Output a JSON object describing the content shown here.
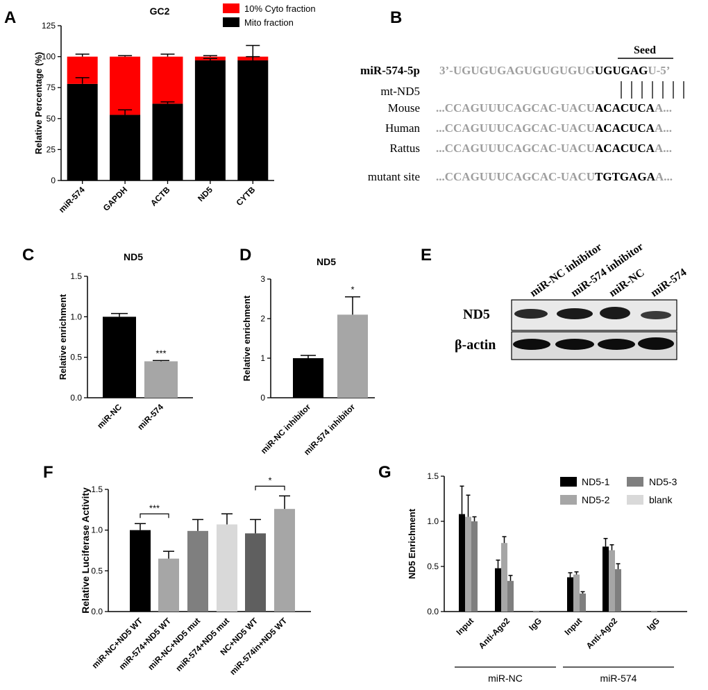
{
  "panel_letters": {
    "A": "A",
    "B": "B",
    "C": "C",
    "D": "D",
    "E": "E",
    "F": "F",
    "G": "G"
  },
  "chart_data": [
    {
      "id": "A",
      "type": "bar",
      "stacked": true,
      "title": "GC2",
      "xlabel": "",
      "ylabel": "Relative Percentage (%)",
      "ylim": [
        0,
        125
      ],
      "yticks": [
        0,
        25,
        50,
        75,
        100,
        125
      ],
      "categories": [
        "miR-574",
        "GAPDH",
        "ACTB",
        "ND5",
        "CYTB"
      ],
      "series": [
        {
          "name": "Mito fraction",
          "color": "#000000",
          "values": [
            78,
            53,
            62,
            97,
            97
          ],
          "err": [
            5,
            4,
            1.5,
            1.5,
            3
          ]
        },
        {
          "name": "10% Cyto fraction",
          "color": "#ff0000",
          "values": [
            22,
            47,
            38,
            3,
            3
          ],
          "err": [
            2,
            0.8,
            2,
            0.8,
            9
          ]
        }
      ],
      "legend_position": "top"
    },
    {
      "id": "C",
      "type": "bar",
      "title": "ND5",
      "xlabel": "",
      "ylabel": "Relative enrichment",
      "ylim": [
        0,
        1.5
      ],
      "yticks": [
        "0.0",
        "0.5",
        "1.0",
        "1.5"
      ],
      "categories": [
        "miR-NC",
        "miR-574"
      ],
      "values": [
        1.0,
        0.45
      ],
      "err": [
        0.04,
        0.01
      ],
      "colors": [
        "#000000",
        "#a6a6a6"
      ],
      "annotations": [
        {
          "category": "miR-574",
          "text": "***"
        }
      ]
    },
    {
      "id": "D",
      "type": "bar",
      "title": "ND5",
      "xlabel": "",
      "ylabel": "Relative enrichment",
      "ylim": [
        0,
        3
      ],
      "yticks": [
        "0",
        "1",
        "2",
        "3"
      ],
      "categories": [
        "miR-NC inhibitor",
        "miR-574 inhibitor"
      ],
      "values": [
        1.0,
        2.1
      ],
      "err": [
        0.07,
        0.45
      ],
      "colors": [
        "#000000",
        "#a6a6a6"
      ],
      "annotations": [
        {
          "category": "miR-574 inhibitor",
          "text": "*"
        }
      ]
    },
    {
      "id": "F",
      "type": "bar",
      "title": "",
      "xlabel": "",
      "ylabel": "Relative Luciferase Activity",
      "ylim": [
        0,
        1.5
      ],
      "yticks": [
        "0.0",
        "0.5",
        "1.0",
        "1.5"
      ],
      "categories": [
        "miR-NC+ND5 WT",
        "miR-574+ND5 WT",
        "miR-NC+ND5 mut",
        "miR-574+ND5 mut",
        "NC+ND5 WT",
        "miR-574in+ND5 WT"
      ],
      "values": [
        1.0,
        0.65,
        0.99,
        1.07,
        0.96,
        1.26
      ],
      "err": [
        0.08,
        0.09,
        0.14,
        0.13,
        0.17,
        0.16
      ],
      "colors": [
        "#000000",
        "#a6a6a6",
        "#7f7f7f",
        "#d9d9d9",
        "#5f5f5f",
        "#a6a6a6"
      ],
      "brackets": [
        {
          "from": 0,
          "to": 1,
          "text": "***"
        },
        {
          "from": 4,
          "to": 5,
          "text": "*"
        }
      ]
    },
    {
      "id": "G",
      "type": "bar",
      "title": "",
      "xlabel": "",
      "ylabel": "ND5 Enrichment",
      "ylim": [
        0,
        1.5
      ],
      "yticks": [
        "0.0",
        "0.5",
        "1.0",
        "1.5"
      ],
      "categories": [
        "Input",
        "Anti-Ago2",
        "IgG",
        "Input",
        "Anti-Ago2",
        "IgG"
      ],
      "groups": [
        {
          "label": "miR-NC",
          "from": 0,
          "to": 2
        },
        {
          "label": "miR-574",
          "from": 3,
          "to": 5
        }
      ],
      "series": [
        {
          "name": "ND5-1",
          "color": "#000000",
          "values": [
            1.08,
            0.48,
            0.0,
            0.38,
            0.72,
            0.0
          ],
          "err": [
            0.31,
            0.09,
            0,
            0.05,
            0.09,
            0
          ]
        },
        {
          "name": "ND5-2",
          "color": "#a6a6a6",
          "values": [
            1.05,
            0.76,
            0.01,
            0.41,
            0.68,
            0.01
          ],
          "err": [
            0.24,
            0.07,
            0,
            0.03,
            0.06,
            0
          ]
        },
        {
          "name": "ND5-3",
          "color": "#7f7f7f",
          "values": [
            1.0,
            0.34,
            0.0,
            0.2,
            0.47,
            0.0
          ],
          "err": [
            0.05,
            0.06,
            0,
            0.02,
            0.06,
            0
          ]
        },
        {
          "name": "blank",
          "color": "#d9d9d9",
          "values": [
            0,
            0,
            0,
            0,
            0,
            0
          ],
          "err": [
            0,
            0,
            0,
            0,
            0,
            0
          ]
        }
      ],
      "legend_position": "top-right"
    }
  ],
  "panel_B": {
    "seed_label": "Seed",
    "rows": [
      {
        "label": "miR-574-5p",
        "bold_label": true,
        "gray": "3’-UGUGUGAGUGUGUGUG",
        "bold": "UGUGAG",
        "tail": "U-5’"
      },
      {
        "label": "mt-ND5",
        "bold_label": false,
        "gray": "",
        "bold": "",
        "tail": ""
      },
      {
        "label": "Mouse",
        "bold_label": false,
        "gray": "...CCAGUUUCAGCAC-UACU",
        "bold": "ACACUCA",
        "tail": "A..."
      },
      {
        "label": "Human",
        "bold_label": false,
        "gray": "...CCAGUUUCAGCAC-UACU",
        "bold": "ACACUCA",
        "tail": "A..."
      },
      {
        "label": "Rattus",
        "bold_label": false,
        "gray": "...CCAGUUUCAGCAC-UACU",
        "bold": "ACACUCA",
        "tail": "A..."
      },
      {
        "label": "mutant site",
        "bold_label": false,
        "gray": "...CCAGUUUCAGCAC-UACU",
        "bold": "TGTGAGA",
        "tail": "A..."
      }
    ]
  },
  "panel_E": {
    "lanes": [
      "miR-NC inhibitor",
      "miR-574 inhibitor",
      "miR-NC",
      "miR-574"
    ],
    "blots": [
      "ND5",
      "β-actin"
    ]
  }
}
